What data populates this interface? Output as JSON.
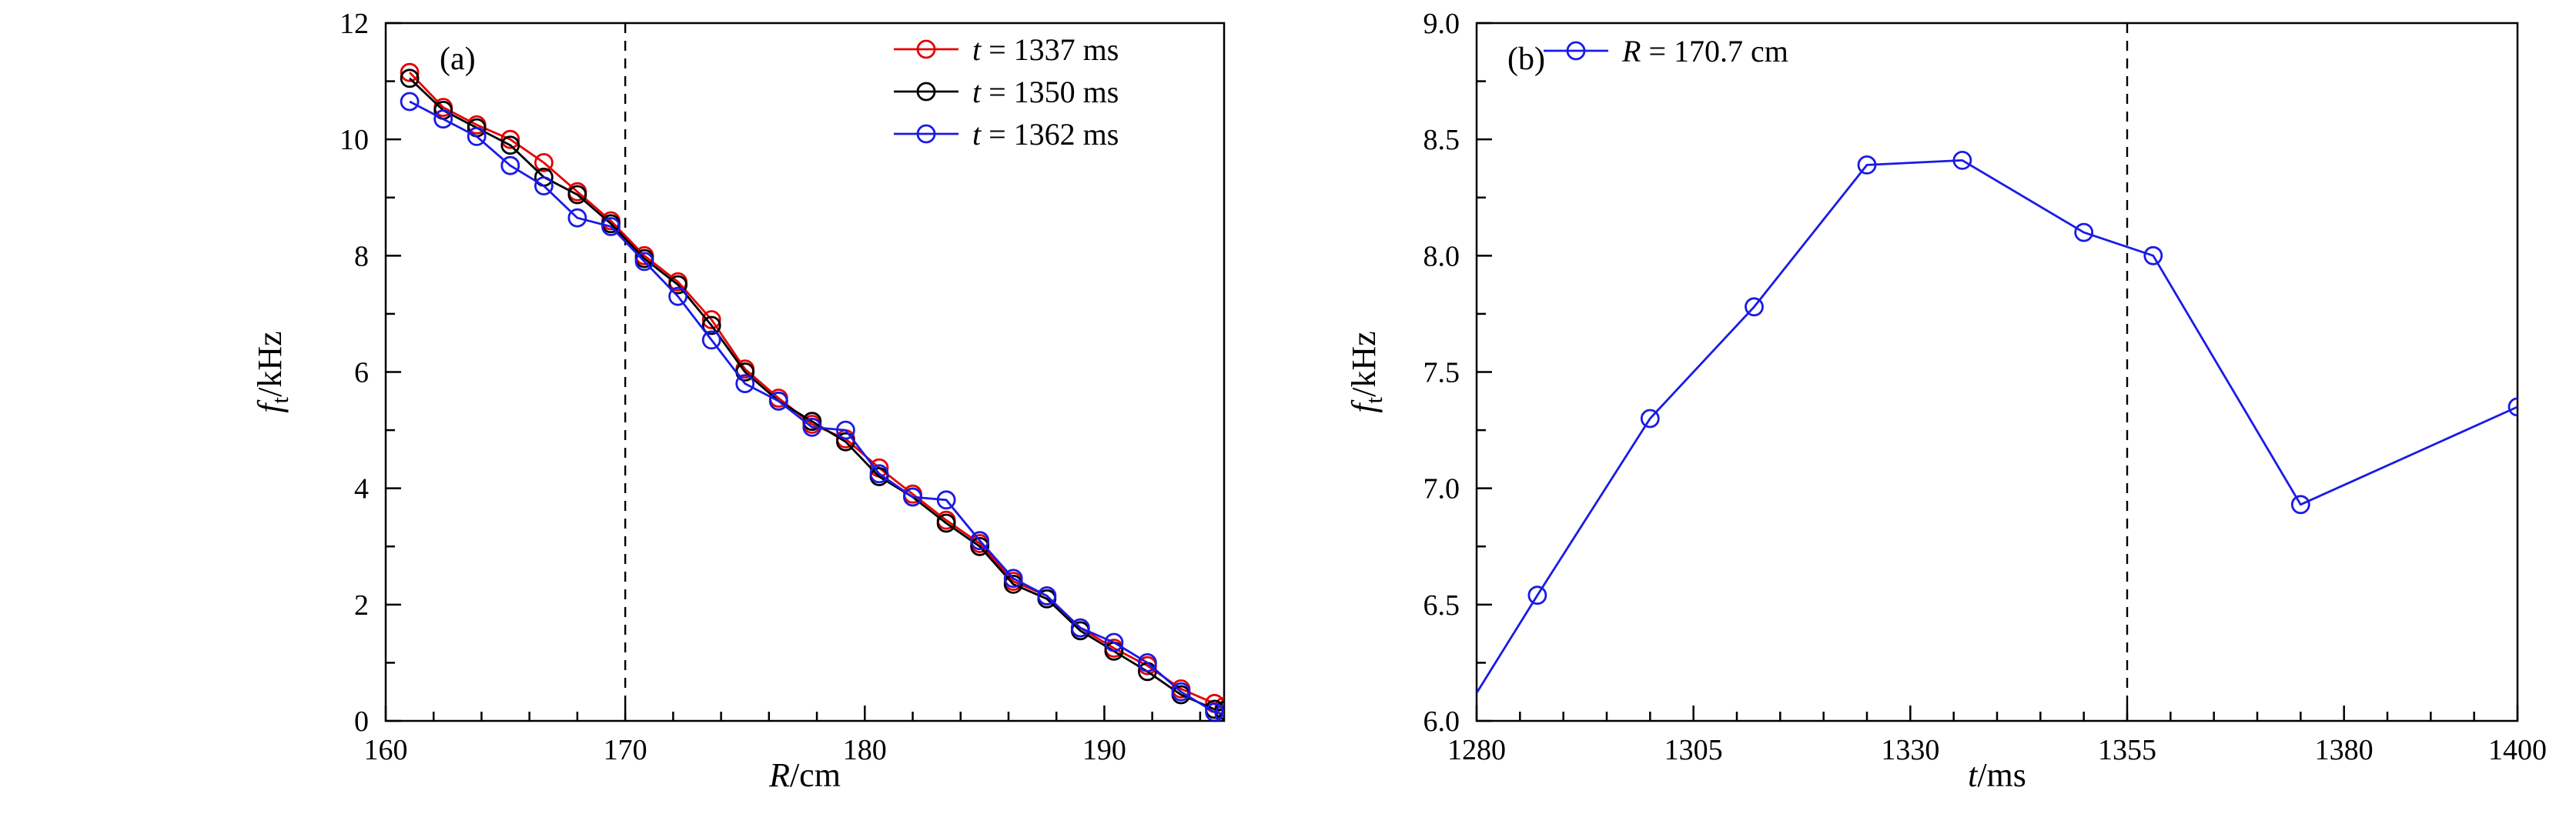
{
  "figure": {
    "background": "#ffffff",
    "axis_color": "#000000"
  },
  "chart_data": [
    {
      "id": "a",
      "type": "line",
      "panel_label": "(a)",
      "xlabel": {
        "var": "R",
        "rest": "/cm"
      },
      "ylabel": {
        "var": "f",
        "sub": "t",
        "rest": "/kHz"
      },
      "xlim": [
        160,
        195
      ],
      "ylim": [
        0,
        12
      ],
      "xticks": [
        160,
        170,
        180,
        190
      ],
      "xticklabels": [
        "160",
        "170",
        "180",
        "190"
      ],
      "xminor_step": 2,
      "yticks": [
        0,
        2,
        4,
        6,
        8,
        10,
        12
      ],
      "yticklabels": [
        "0",
        "2",
        "4",
        "6",
        "8",
        "10",
        "12"
      ],
      "yminor_step": 1,
      "dashed_vline_x": 170,
      "legend_position": "top-right",
      "grid": false,
      "series": [
        {
          "name": {
            "var": "t",
            "rest": " = 1337 ms"
          },
          "color": "#e50000",
          "x": [
            161,
            162.4,
            163.8,
            165.2,
            166.6,
            168,
            169.4,
            170.8,
            172.2,
            173.6,
            175,
            176.4,
            177.8,
            179.2,
            180.6,
            182,
            183.4,
            184.8,
            186.2,
            187.6,
            189,
            190.4,
            191.8,
            193.2,
            194.6,
            195
          ],
          "y": [
            11.15,
            10.55,
            10.25,
            10.0,
            9.6,
            9.1,
            8.6,
            8.0,
            7.55,
            6.9,
            6.05,
            5.55,
            5.1,
            4.85,
            4.35,
            3.9,
            3.45,
            3.05,
            2.4,
            2.15,
            1.6,
            1.25,
            0.95,
            0.55,
            0.3,
            0.25
          ]
        },
        {
          "name": {
            "var": "t",
            "rest": " = 1350 ms"
          },
          "color": "#000000",
          "x": [
            161,
            162.4,
            163.8,
            165.2,
            166.6,
            168,
            169.4,
            170.8,
            172.2,
            173.6,
            175,
            176.4,
            177.8,
            179.2,
            180.6,
            182,
            183.4,
            184.8,
            186.2,
            187.6,
            189,
            190.4,
            191.8,
            193.2,
            194.6,
            195
          ],
          "y": [
            11.05,
            10.5,
            10.2,
            9.9,
            9.35,
            9.05,
            8.55,
            7.95,
            7.5,
            6.8,
            6.0,
            5.5,
            5.15,
            4.8,
            4.2,
            3.85,
            3.4,
            3.0,
            2.35,
            2.1,
            1.55,
            1.2,
            0.85,
            0.45,
            0.2,
            0.18
          ]
        },
        {
          "name": {
            "var": "t",
            "rest": " = 1362 ms"
          },
          "color": "#1a1ae6",
          "x": [
            161,
            162.4,
            163.8,
            165.2,
            166.6,
            168,
            169.4,
            170.8,
            172.2,
            173.6,
            175,
            176.4,
            177.8,
            179.2,
            180.6,
            182,
            183.4,
            184.8,
            186.2,
            187.6,
            189,
            190.4,
            191.8,
            193.2,
            194.6,
            195
          ],
          "y": [
            10.65,
            10.35,
            10.05,
            9.55,
            9.2,
            8.65,
            8.5,
            7.9,
            7.3,
            6.55,
            5.8,
            5.5,
            5.05,
            5.0,
            4.25,
            3.85,
            3.8,
            3.1,
            2.45,
            2.15,
            1.6,
            1.35,
            1.0,
            0.5,
            0.15,
            0.12
          ]
        }
      ]
    },
    {
      "id": "b",
      "type": "line",
      "panel_label": "(b)",
      "xlabel": {
        "var": "t",
        "rest": "/ms"
      },
      "ylabel": {
        "var": "f",
        "sub": "t",
        "rest": "/kHz"
      },
      "xlim": [
        1280,
        1400
      ],
      "ylim": [
        6.0,
        9.0
      ],
      "xticks": [
        1280,
        1305,
        1330,
        1355,
        1380,
        1400
      ],
      "xticklabels": [
        "1280",
        "1305",
        "1330",
        "1355",
        "1380",
        "1400"
      ],
      "xminor_step": 5,
      "yticks": [
        6.0,
        6.5,
        7.0,
        7.5,
        8.0,
        8.5,
        9.0
      ],
      "yticklabels": [
        "6.0",
        "6.5",
        "7.0",
        "7.5",
        "8.0",
        "8.5",
        "9.0"
      ],
      "yminor_step": 0.25,
      "dashed_vline_x": 1355,
      "legend_position": "top-left",
      "grid": false,
      "series": [
        {
          "name": {
            "var": "R",
            "rest": " = 170.7 cm"
          },
          "color": "#1a1ae6",
          "marker_start": 1,
          "x": [
            1280,
            1287,
            1300,
            1312,
            1325,
            1336,
            1350,
            1358,
            1375,
            1400
          ],
          "y": [
            6.12,
            6.54,
            7.3,
            7.78,
            8.39,
            8.41,
            8.1,
            8.0,
            6.93,
            7.35
          ]
        }
      ]
    }
  ]
}
